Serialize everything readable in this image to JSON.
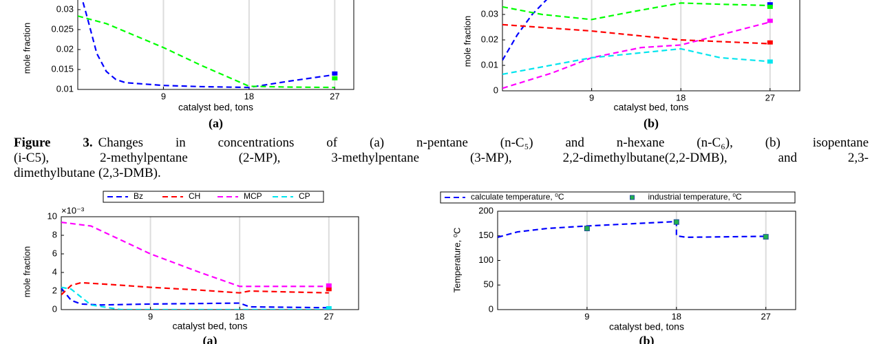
{
  "chart_data": [
    {
      "type": "line",
      "panel_label": "(a)",
      "xlabel": "catalyst bed, tons",
      "ylabel": "mole fraction",
      "xlim": [
        0,
        29
      ],
      "ylim": [
        0.01,
        0.035
      ],
      "xticks": [
        9,
        18,
        27
      ],
      "yticks": [
        0.01,
        0.015,
        0.02,
        0.025,
        0.03
      ],
      "grid": "x",
      "series": [
        {
          "color": "#0000ff",
          "x": [
            0.3,
            1,
            2,
            3,
            4,
            5,
            9,
            13,
            18,
            22,
            27
          ],
          "values": [
            0.034,
            0.028,
            0.019,
            0.0145,
            0.0125,
            0.0117,
            0.011,
            0.0107,
            0.0105,
            0.012,
            0.0137
          ],
          "markers": {
            "x": [
              27
            ],
            "values": [
              0.014
            ]
          }
        },
        {
          "color": "#00ff00",
          "x": [
            0,
            3,
            9,
            13,
            18,
            22,
            27
          ],
          "values": [
            0.0284,
            0.0265,
            0.0205,
            0.016,
            0.0108,
            0.0106,
            0.0105
          ],
          "markers": {
            "x": [
              27
            ],
            "values": [
              0.0128
            ]
          }
        }
      ]
    },
    {
      "type": "line",
      "panel_label": "(b)",
      "xlabel": "catalyst bed, tons",
      "ylabel": "mole fraction",
      "xlim": [
        0,
        30
      ],
      "ylim": [
        0,
        0.04
      ],
      "xticks": [
        9,
        18,
        27
      ],
      "yticks": [
        0,
        0.01,
        0.02,
        0.03
      ],
      "grid": "x",
      "series": [
        {
          "color": "#0000ff",
          "x": [
            0,
            1.5,
            3,
            4.5,
            6
          ],
          "values": [
            0.012,
            0.022,
            0.03,
            0.036,
            0.04
          ],
          "markers": {
            "x": [
              27
            ],
            "values": [
              0.034
            ]
          }
        },
        {
          "color": "#00ff00",
          "x": [
            0,
            4,
            9,
            13,
            18,
            22,
            27
          ],
          "values": [
            0.033,
            0.03,
            0.028,
            0.031,
            0.0345,
            0.034,
            0.0335
          ],
          "markers": {
            "x": [
              27
            ],
            "values": [
              0.033
            ]
          }
        },
        {
          "color": "#ff0000",
          "x": [
            0,
            9,
            18,
            27
          ],
          "values": [
            0.026,
            0.0235,
            0.02,
            0.0185
          ],
          "markers": {
            "x": [
              27
            ],
            "values": [
              0.019
            ]
          }
        },
        {
          "color": "#ff00ff",
          "x": [
            0,
            5,
            9,
            14,
            18,
            23,
            27
          ],
          "values": [
            0.001,
            0.007,
            0.013,
            0.017,
            0.018,
            0.023,
            0.027
          ],
          "markers": {
            "x": [
              27
            ],
            "values": [
              0.0275
            ]
          }
        },
        {
          "color": "#00e5ee",
          "x": [
            0,
            9,
            18,
            22,
            27
          ],
          "values": [
            0.0065,
            0.013,
            0.0165,
            0.013,
            0.0115
          ],
          "markers": {
            "x": [
              27
            ],
            "values": [
              0.0115
            ]
          }
        }
      ]
    },
    {
      "type": "line",
      "panel_label": "(a)",
      "xlabel": "catalyst bed, tons",
      "ylabel": "mole fraction",
      "y_multiplier": "×10⁻³",
      "xlim": [
        0,
        30
      ],
      "ylim": [
        0,
        10
      ],
      "xticks": [
        9,
        18,
        27
      ],
      "yticks": [
        0,
        2,
        4,
        6,
        8,
        10
      ],
      "grid": "x",
      "legend": "top",
      "series": [
        {
          "name": "Bz",
          "color": "#0000ff",
          "x": [
            0,
            1,
            2,
            4,
            9,
            18,
            19,
            27
          ],
          "values": [
            2.3,
            1,
            0.6,
            0.5,
            0.6,
            0.7,
            0.3,
            0.2
          ]
        },
        {
          "name": "CH",
          "color": "#ff0000",
          "x": [
            0,
            1,
            2,
            5,
            9,
            14,
            18,
            19,
            27
          ],
          "values": [
            1.6,
            2.6,
            2.9,
            2.7,
            2.4,
            2.1,
            1.8,
            2,
            1.8
          ],
          "markers": {
            "x": [
              27
            ],
            "values": [
              2.2
            ]
          }
        },
        {
          "name": "MCP",
          "color": "#ff00ff",
          "x": [
            0,
            3,
            9,
            14,
            18,
            27
          ],
          "values": [
            9.4,
            9,
            6,
            4,
            2.5,
            2.5
          ],
          "markers": {
            "x": [
              27
            ],
            "values": [
              2.6
            ]
          }
        },
        {
          "name": "CP",
          "color": "#00e5ee",
          "x": [
            0,
            1,
            3,
            6,
            18,
            27
          ],
          "values": [
            2.4,
            2.2,
            0.5,
            0,
            0,
            0
          ],
          "markers": {
            "x": [
              27
            ],
            "values": [
              0.15
            ]
          }
        }
      ]
    },
    {
      "type": "line",
      "panel_label": "(b)",
      "xlabel": "catalyst bed, tons",
      "ylabel": "Temperature, ⁰C",
      "xlim": [
        0,
        30
      ],
      "ylim": [
        0,
        200
      ],
      "xticks": [
        9,
        18,
        27
      ],
      "yticks": [
        0,
        50,
        100,
        150,
        200
      ],
      "grid": "x",
      "legend": "top",
      "series": [
        {
          "name": "calculate temperature, ⁰C",
          "color": "#0000ff",
          "x": [
            0,
            2,
            5,
            9,
            14,
            18,
            18,
            19,
            27
          ],
          "values": [
            147,
            158,
            165,
            170,
            175,
            179,
            150,
            147,
            149
          ]
        },
        {
          "name": "industrial temperature, ⁰C",
          "color": "#22b14c",
          "style": "marker",
          "x": [
            9,
            18,
            27
          ],
          "values": [
            165,
            178,
            148
          ]
        }
      ]
    }
  ],
  "caption": {
    "label": "Figure 3.",
    "lines": [
      "Changes in concentrations of (a) n-pentane (n-C₅) and n-hexane (n-C₆), (b) isopentane",
      "(i-C5), 2-methylpentane (2-MP), 3-methylpentane (3-MP), 2,2-dimethylbutane(2,2-DMB), and 2,3-",
      "dimethylbutane (2,3-DMB)."
    ]
  }
}
